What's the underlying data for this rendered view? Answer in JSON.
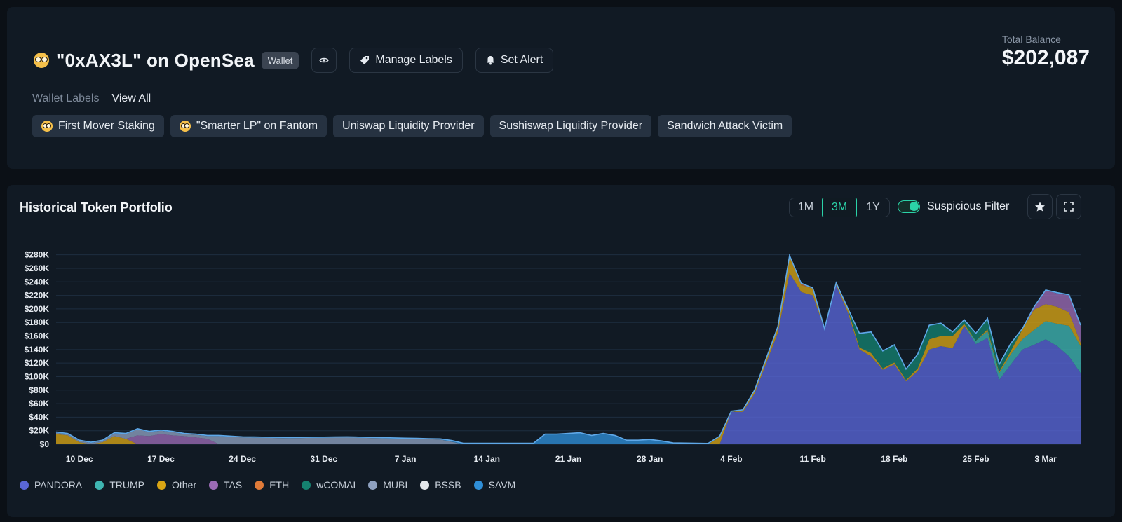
{
  "header": {
    "title": "\"0xAX3L\" on OpenSea",
    "type_badge": "Wallet",
    "manage_labels": "Manage Labels",
    "set_alert": "Set Alert",
    "total_balance_label": "Total Balance",
    "total_balance_value": "$202,087",
    "wallet_labels_title": "Wallet Labels",
    "view_all": "View All",
    "labels": [
      "First Mover Staking",
      "\"Smarter LP\" on Fantom",
      "Uniswap Liquidity Provider",
      "Sushiswap Liquidity Provider",
      "Sandwich Attack Victim"
    ]
  },
  "portfolio": {
    "title": "Historical Token Portfolio",
    "ranges": [
      "1M",
      "3M",
      "1Y"
    ],
    "active_range": "3M",
    "suspicious_filter_label": "Suspicious Filter",
    "suspicious_filter_on": true
  },
  "chart_data": {
    "type": "area",
    "stacked": true,
    "y_ticks": [
      "$0",
      "$20K",
      "$40K",
      "$60K",
      "$80K",
      "$100K",
      "$120K",
      "$140K",
      "$160K",
      "$180K",
      "$200K",
      "$220K",
      "$240K",
      "$260K",
      "$280K"
    ],
    "ylim": [
      0,
      290000
    ],
    "x_ticks": [
      "10 Dec",
      "17 Dec",
      "24 Dec",
      "31 Dec",
      "7 Jan",
      "14 Jan",
      "21 Jan",
      "28 Jan",
      "4 Feb",
      "11 Feb",
      "18 Feb",
      "25 Feb",
      "3 Mar"
    ],
    "x_range": [
      "2024-12-08",
      "2025-03-06"
    ],
    "grid": true,
    "legend_position": "bottom",
    "series": [
      {
        "name": "PANDORA",
        "color": "#5a67d8",
        "points": [
          [
            "2025-02-03",
            0
          ],
          [
            "2025-02-04",
            48000
          ],
          [
            "2025-02-05",
            48000
          ],
          [
            "2025-02-06",
            75000
          ],
          [
            "2025-02-07",
            120000
          ],
          [
            "2025-02-08",
            165000
          ],
          [
            "2025-02-09",
            253000
          ],
          [
            "2025-02-10",
            225000
          ],
          [
            "2025-02-11",
            220000
          ],
          [
            "2025-02-12",
            170000
          ],
          [
            "2025-02-13",
            235000
          ],
          [
            "2025-02-14",
            195000
          ],
          [
            "2025-02-15",
            140000
          ],
          [
            "2025-02-16",
            130000
          ],
          [
            "2025-02-17",
            110000
          ],
          [
            "2025-02-18",
            118000
          ],
          [
            "2025-02-19",
            93000
          ],
          [
            "2025-02-20",
            108000
          ],
          [
            "2025-02-21",
            140000
          ],
          [
            "2025-02-22",
            145000
          ],
          [
            "2025-02-23",
            142000
          ],
          [
            "2025-02-24",
            175000
          ],
          [
            "2025-02-25",
            148000
          ],
          [
            "2025-02-26",
            157000
          ],
          [
            "2025-02-27",
            95000
          ],
          [
            "2025-02-28",
            118000
          ],
          [
            "2025-03-01",
            140000
          ],
          [
            "2025-03-02",
            147000
          ],
          [
            "2025-03-03",
            155000
          ],
          [
            "2025-03-04",
            145000
          ],
          [
            "2025-03-05",
            130000
          ],
          [
            "2025-03-06",
            105000
          ]
        ]
      },
      {
        "name": "TRUMP",
        "color": "#3fb6b2",
        "points": [
          [
            "2025-02-24",
            0
          ],
          [
            "2025-02-25",
            5000
          ],
          [
            "2025-02-26",
            10000
          ],
          [
            "2025-02-27",
            10000
          ],
          [
            "2025-02-28",
            15000
          ],
          [
            "2025-03-01",
            15000
          ],
          [
            "2025-03-02",
            22000
          ],
          [
            "2025-03-03",
            27000
          ],
          [
            "2025-03-04",
            33000
          ],
          [
            "2025-03-05",
            45000
          ],
          [
            "2025-03-06",
            40000
          ]
        ]
      },
      {
        "name": "Other",
        "color": "#d9a514",
        "points": [
          [
            "2024-12-08",
            15000
          ],
          [
            "2024-12-09",
            13000
          ],
          [
            "2024-12-10",
            3000
          ],
          [
            "2024-12-11",
            0
          ],
          [
            "2024-12-12",
            3000
          ],
          [
            "2024-12-13",
            12000
          ],
          [
            "2024-12-14",
            8000
          ],
          [
            "2024-12-15",
            0
          ],
          [
            "2025-02-02",
            0
          ],
          [
            "2025-02-03",
            11000
          ],
          [
            "2025-02-04",
            0
          ],
          [
            "2025-02-08",
            8000
          ],
          [
            "2025-02-09",
            25000
          ],
          [
            "2025-02-10",
            10000
          ],
          [
            "2025-02-11",
            10000
          ],
          [
            "2025-02-12",
            0
          ],
          [
            "2025-02-14",
            5000
          ],
          [
            "2025-02-15",
            3000
          ],
          [
            "2025-02-16",
            5000
          ],
          [
            "2025-02-17",
            2000
          ],
          [
            "2025-02-18",
            3000
          ],
          [
            "2025-02-19",
            2000
          ],
          [
            "2025-02-20",
            4000
          ],
          [
            "2025-02-21",
            15000
          ],
          [
            "2025-02-22",
            15000
          ],
          [
            "2025-02-23",
            18000
          ],
          [
            "2025-02-24",
            3000
          ],
          [
            "2025-02-25",
            0
          ],
          [
            "2025-02-26",
            3000
          ],
          [
            "2025-02-27",
            2000
          ],
          [
            "2025-02-28",
            5000
          ],
          [
            "2025-03-01",
            15000
          ],
          [
            "2025-03-02",
            30000
          ],
          [
            "2025-03-03",
            25000
          ],
          [
            "2025-03-04",
            25000
          ],
          [
            "2025-03-05",
            20000
          ],
          [
            "2025-03-06",
            5000
          ]
        ]
      },
      {
        "name": "TAS",
        "color": "#9b6bb5",
        "points": [
          [
            "2024-12-14",
            0
          ],
          [
            "2024-12-15",
            13000
          ],
          [
            "2024-12-16",
            12000
          ],
          [
            "2024-12-17",
            15000
          ],
          [
            "2024-12-18",
            13000
          ],
          [
            "2024-12-19",
            12000
          ],
          [
            "2024-12-20",
            10000
          ],
          [
            "2024-12-21",
            8000
          ],
          [
            "2024-12-22",
            0
          ],
          [
            "2025-03-01",
            0
          ],
          [
            "2025-03-02",
            3000
          ],
          [
            "2025-03-03",
            20000
          ],
          [
            "2025-03-04",
            20000
          ],
          [
            "2025-03-05",
            25000
          ],
          [
            "2025-03-06",
            25000
          ]
        ]
      },
      {
        "name": "ETH",
        "color": "#e07b39",
        "points": [
          [
            "2025-02-09",
            0
          ],
          [
            "2025-02-10",
            2000
          ],
          [
            "2025-02-11",
            0
          ]
        ]
      },
      {
        "name": "wCOMAI",
        "color": "#15816f",
        "points": [
          [
            "2025-02-14",
            0
          ],
          [
            "2025-02-15",
            20000
          ],
          [
            "2025-02-16",
            30000
          ],
          [
            "2025-02-17",
            25000
          ],
          [
            "2025-02-18",
            25000
          ],
          [
            "2025-02-19",
            15000
          ],
          [
            "2025-02-20",
            20000
          ],
          [
            "2025-02-21",
            20000
          ],
          [
            "2025-02-22",
            18000
          ],
          [
            "2025-02-23",
            5000
          ],
          [
            "2025-02-24",
            5000
          ],
          [
            "2025-02-25",
            10000
          ],
          [
            "2025-02-26",
            15000
          ],
          [
            "2025-02-27",
            10000
          ],
          [
            "2025-02-28",
            10000
          ],
          [
            "2025-03-01",
            0
          ]
        ]
      },
      {
        "name": "MUBI",
        "color": "#8ea1c0",
        "points": [
          [
            "2024-12-08",
            2000
          ],
          [
            "2024-12-12",
            2000
          ],
          [
            "2024-12-13",
            4000
          ],
          [
            "2024-12-14",
            7000
          ],
          [
            "2024-12-15",
            9000
          ],
          [
            "2024-12-16",
            6000
          ],
          [
            "2024-12-17",
            5000
          ],
          [
            "2024-12-18",
            5000
          ],
          [
            "2024-12-19",
            3000
          ],
          [
            "2024-12-20",
            4000
          ],
          [
            "2024-12-21",
            4000
          ],
          [
            "2024-12-22",
            12000
          ],
          [
            "2024-12-24",
            10000
          ],
          [
            "2024-12-28",
            9000
          ],
          [
            "2025-01-02",
            10000
          ],
          [
            "2025-01-07",
            8000
          ],
          [
            "2025-01-10",
            7000
          ],
          [
            "2025-01-12",
            0
          ]
        ]
      },
      {
        "name": "BSSB",
        "color": "#e3e6ea",
        "points": [
          [
            "2024-12-08",
            0
          ],
          [
            "2025-03-06",
            0
          ]
        ]
      },
      {
        "name": "SAVM",
        "color": "#2f8fd8",
        "points": [
          [
            "2024-12-08",
            1000
          ],
          [
            "2024-12-15",
            1000
          ],
          [
            "2025-01-10",
            1000
          ],
          [
            "2025-01-11",
            2000
          ],
          [
            "2025-01-12",
            1500
          ],
          [
            "2025-01-18",
            1500
          ],
          [
            "2025-01-19",
            15000
          ],
          [
            "2025-01-20",
            15000
          ],
          [
            "2025-01-21",
            16000
          ],
          [
            "2025-01-22",
            17000
          ],
          [
            "2025-01-23",
            13000
          ],
          [
            "2025-01-24",
            16000
          ],
          [
            "2025-01-25",
            13000
          ],
          [
            "2025-01-26",
            6000
          ],
          [
            "2025-01-27",
            6000
          ],
          [
            "2025-01-28",
            7000
          ],
          [
            "2025-01-29",
            5000
          ],
          [
            "2025-01-30",
            2000
          ],
          [
            "2025-02-03",
            1000
          ],
          [
            "2025-03-06",
            1000
          ]
        ]
      }
    ]
  },
  "icons": {
    "eye": "eye-icon",
    "tag": "tag-icon",
    "bell": "bell-icon",
    "star": "star-icon",
    "expand": "expand-icon"
  },
  "colors": {
    "accent": "#2bd3a8",
    "background": "#0b1016",
    "card": "#111a24"
  }
}
